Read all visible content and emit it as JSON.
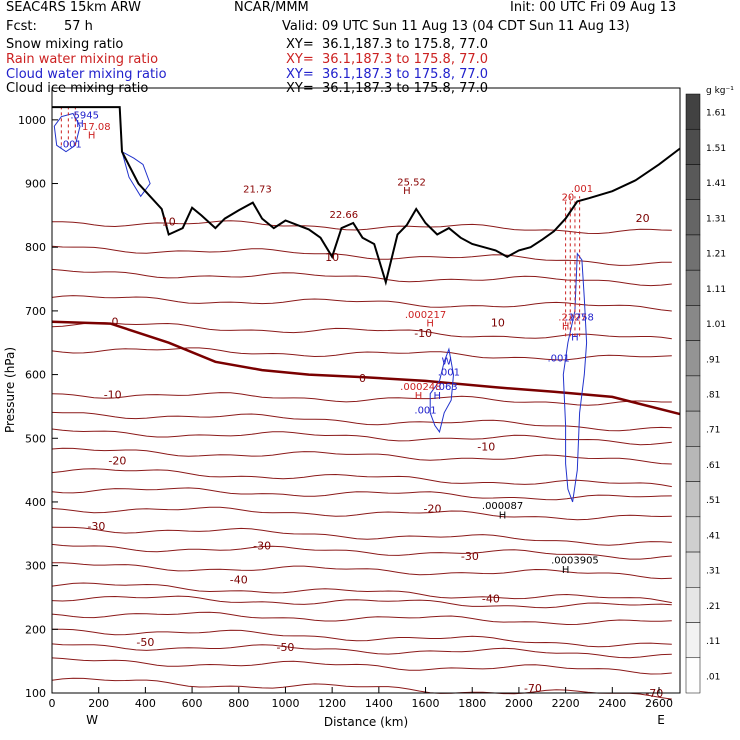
{
  "header": {
    "model": "SEAC4RS 15km ARW",
    "org": "NCAR/MMM",
    "init": "Init: 00 UTC Fri 09 Aug 13",
    "fcst_label": "Fcst:",
    "fcst_value": "57 h",
    "valid": "Valid: 09 UTC Sun 11 Aug 13 (04 CDT Sun 11 Aug 13)",
    "fields": [
      {
        "name": "Snow mixing ratio",
        "xy": "XY=  36.1,187.3 to 175.8, 77.0",
        "color": "#000000"
      },
      {
        "name": "Rain water mixing ratio",
        "xy": "XY=  36.1,187.3 to 175.8, 77.0",
        "color": "#cc2222"
      },
      {
        "name": "Cloud water mixing ratio",
        "xy": "XY=  36.1,187.3 to 175.8, 77.0",
        "color": "#2222cc"
      },
      {
        "name": "Cloud ice mixing ratio",
        "xy": "XY=  36.1,187.3 to 175.8, 77.0",
        "color": "#000000"
      }
    ]
  },
  "chart_data": {
    "type": "cross-section",
    "xlabel": "Distance (km)",
    "ylabel": "Pressure (hPa)",
    "x_ticks": [
      0,
      200,
      400,
      600,
      800,
      1000,
      1200,
      1400,
      1600,
      1800,
      2000,
      2200,
      2400,
      2600
    ],
    "y_ticks": [
      100,
      200,
      300,
      400,
      500,
      600,
      700,
      800,
      900,
      1000
    ],
    "xlim": [
      0,
      2690
    ],
    "ylim_hpa": [
      1050,
      100
    ],
    "x_end_labels": {
      "left": "W",
      "right": "E"
    },
    "colorbar": {
      "unit": "g kg⁻¹",
      "labels": [
        "1.61",
        "1.51",
        "1.41",
        "1.31",
        "1.21",
        "1.11",
        "1.01",
        ".91",
        ".81",
        ".71",
        ".61",
        ".51",
        ".41",
        ".31",
        ".21",
        ".11",
        ".01"
      ]
    },
    "temperature_contour_labels": [
      {
        "text": "-70",
        "x": 2060,
        "p": 108
      },
      {
        "text": "-70",
        "x": 2580,
        "p": 100
      },
      {
        "text": "-50",
        "x": 400,
        "p": 180
      },
      {
        "text": "-50",
        "x": 1000,
        "p": 172
      },
      {
        "text": "-40",
        "x": 800,
        "p": 278
      },
      {
        "text": "-40",
        "x": 1880,
        "p": 248
      },
      {
        "text": "-30",
        "x": 900,
        "p": 332
      },
      {
        "text": "-30",
        "x": 1790,
        "p": 315
      },
      {
        "text": "-30",
        "x": 190,
        "p": 362
      },
      {
        "text": "-20",
        "x": 280,
        "p": 465
      },
      {
        "text": "-20",
        "x": 1630,
        "p": 390
      },
      {
        "text": "-10",
        "x": 260,
        "p": 569
      },
      {
        "text": "-10",
        "x": 1860,
        "p": 487
      },
      {
        "text": "0",
        "x": 270,
        "p": 683
      },
      {
        "text": "0",
        "x": 1330,
        "p": 595
      },
      {
        "text": "10",
        "x": 500,
        "p": 840
      },
      {
        "text": "10",
        "x": 1910,
        "p": 682
      },
      {
        "text": "-10",
        "x": 1590,
        "p": 665
      },
      {
        "text": "20",
        "x": 2530,
        "p": 846
      },
      {
        "text": "10",
        "x": 1200,
        "p": 785
      }
    ],
    "extrema_labels": [
      {
        "text": "H",
        "x": 2200,
        "p": 295,
        "color": "#000000"
      },
      {
        "text": ".0003905",
        "x": 2240,
        "p": 310,
        "color": "#000000"
      },
      {
        "text": "H",
        "x": 1930,
        "p": 380,
        "color": "#000000"
      },
      {
        "text": ".000087",
        "x": 1930,
        "p": 395,
        "color": "#000000"
      },
      {
        "text": ".001",
        "x": 1600,
        "p": 545,
        "color": "#2222cc"
      },
      {
        "text": "H",
        "x": 1570,
        "p": 568,
        "color": "#cc2222"
      },
      {
        "text": ".000248",
        "x": 1580,
        "p": 582,
        "color": "#cc2222"
      },
      {
        "text": "H",
        "x": 1650,
        "p": 568,
        "color": "#2222cc"
      },
      {
        "text": ".063",
        "x": 1690,
        "p": 582,
        "color": "#2222cc"
      },
      {
        "text": ".001",
        "x": 1700,
        "p": 605,
        "color": "#2222cc"
      },
      {
        "text": "W",
        "x": 1690,
        "p": 622,
        "color": "#2222cc"
      },
      {
        "text": ".001",
        "x": 2170,
        "p": 627,
        "color": "#2222cc"
      },
      {
        "text": "H",
        "x": 1620,
        "p": 682,
        "color": "#cc2222"
      },
      {
        "text": ".000217",
        "x": 1600,
        "p": 695,
        "color": "#cc2222"
      },
      {
        "text": "H",
        "x": 2200,
        "p": 677,
        "color": "#cc2222"
      },
      {
        "text": ".2227",
        "x": 2230,
        "p": 691,
        "color": "#cc2222"
      },
      {
        "text": "H",
        "x": 2240,
        "p": 660,
        "color": "#2222cc"
      },
      {
        "text": ".1758",
        "x": 2260,
        "p": 691,
        "color": "#2222cc"
      },
      {
        "text": "20",
        "x": 2210,
        "p": 880,
        "color": "#cc2222"
      },
      {
        "text": ".001",
        "x": 2270,
        "p": 893,
        "color": "#cc2222"
      },
      {
        "text": "21.73",
        "x": 880,
        "p": 892,
        "color": "#880000"
      },
      {
        "text": "22.66",
        "x": 1250,
        "p": 852,
        "color": "#880000"
      },
      {
        "text": "H",
        "x": 1520,
        "p": 890,
        "color": "#880000"
      },
      {
        "text": "25.52",
        "x": 1540,
        "p": 903,
        "color": "#880000"
      },
      {
        "text": ".001",
        "x": 80,
        "p": 963,
        "color": "#2222cc"
      },
      {
        "text": "H",
        "x": 170,
        "p": 977,
        "color": "#cc2222"
      },
      {
        "text": "17.08",
        "x": 190,
        "p": 990,
        "color": "#cc2222"
      },
      {
        "text": "H",
        "x": 120,
        "p": 995,
        "color": "#2222cc"
      },
      {
        "text": ".5945",
        "x": 140,
        "p": 1008,
        "color": "#2222cc"
      }
    ],
    "terrain_km_hpa": [
      [
        0,
        1020
      ],
      [
        290,
        1020
      ],
      [
        300,
        950
      ],
      [
        370,
        900
      ],
      [
        420,
        880
      ],
      [
        470,
        860
      ],
      [
        500,
        820
      ],
      [
        560,
        830
      ],
      [
        600,
        862
      ],
      [
        640,
        850
      ],
      [
        700,
        830
      ],
      [
        740,
        845
      ],
      [
        800,
        858
      ],
      [
        860,
        870
      ],
      [
        900,
        845
      ],
      [
        950,
        830
      ],
      [
        1000,
        842
      ],
      [
        1050,
        835
      ],
      [
        1100,
        828
      ],
      [
        1150,
        815
      ],
      [
        1200,
        785
      ],
      [
        1240,
        830
      ],
      [
        1290,
        838
      ],
      [
        1330,
        815
      ],
      [
        1380,
        805
      ],
      [
        1430,
        745
      ],
      [
        1480,
        820
      ],
      [
        1520,
        835
      ],
      [
        1560,
        860
      ],
      [
        1600,
        838
      ],
      [
        1650,
        820
      ],
      [
        1700,
        830
      ],
      [
        1750,
        815
      ],
      [
        1800,
        805
      ],
      [
        1850,
        800
      ],
      [
        1900,
        795
      ],
      [
        1950,
        785
      ],
      [
        2000,
        795
      ],
      [
        2050,
        800
      ],
      [
        2100,
        812
      ],
      [
        2150,
        825
      ],
      [
        2200,
        845
      ],
      [
        2250,
        872
      ],
      [
        2300,
        877
      ],
      [
        2400,
        888
      ],
      [
        2500,
        905
      ],
      [
        2600,
        930
      ],
      [
        2690,
        955
      ]
    ],
    "zero_line": [
      [
        0,
        683
      ],
      [
        250,
        680
      ],
      [
        500,
        650
      ],
      [
        700,
        620
      ],
      [
        900,
        607
      ],
      [
        1100,
        600
      ],
      [
        1330,
        596
      ],
      [
        1600,
        590
      ],
      [
        1900,
        580
      ],
      [
        2150,
        573
      ],
      [
        2400,
        565
      ],
      [
        2690,
        538
      ]
    ]
  }
}
